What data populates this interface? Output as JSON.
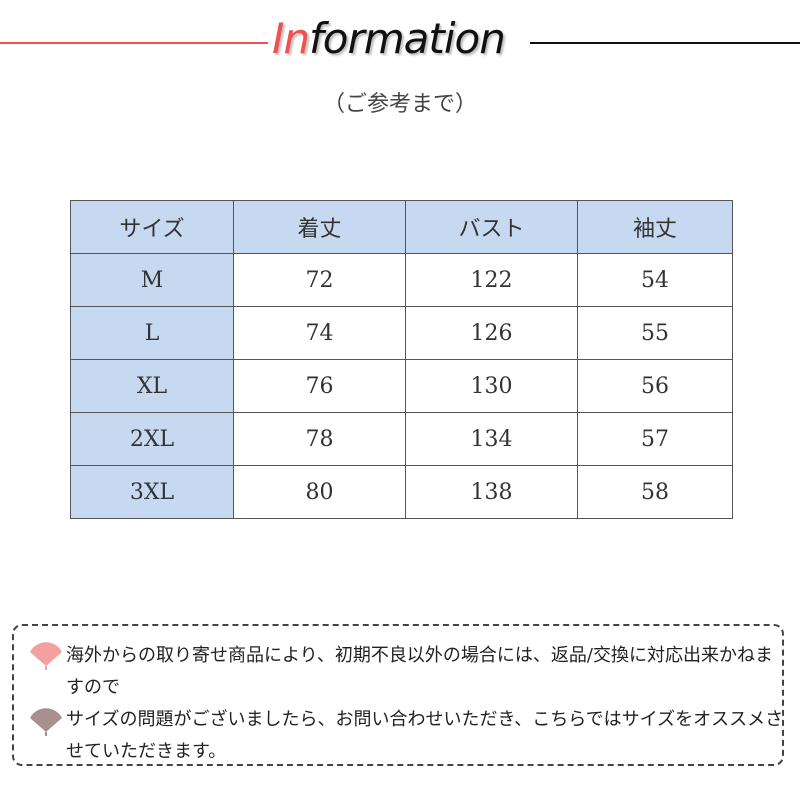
{
  "header": {
    "title_accent": "In",
    "title_rest": "formation",
    "subtitle": "（ご参考まで）"
  },
  "colors": {
    "accent": "#f05050",
    "table_header": "#c6d9f1",
    "fan1": "#f4a0a0",
    "fan2": "#a89090"
  },
  "table": {
    "headers": [
      "サイズ",
      "着丈",
      "バスト",
      "袖丈"
    ],
    "rows": [
      [
        "M",
        "72",
        "122",
        "54"
      ],
      [
        "L",
        "74",
        "126",
        "55"
      ],
      [
        "XL",
        "76",
        "130",
        "56"
      ],
      [
        "2XL",
        "78",
        "134",
        "57"
      ],
      [
        "3XL",
        "80",
        "138",
        "58"
      ]
    ]
  },
  "notes": [
    {
      "icon": "fan-icon",
      "text": "海外からの取り寄せ商品により、初期不良以外の場合には、返品/交換に対応出来かねますので"
    },
    {
      "icon": "fan-icon",
      "text": "サイズの問題がございましたら、お問い合わせいただき、こちらではサイズをオススメさせていただきます。"
    }
  ]
}
